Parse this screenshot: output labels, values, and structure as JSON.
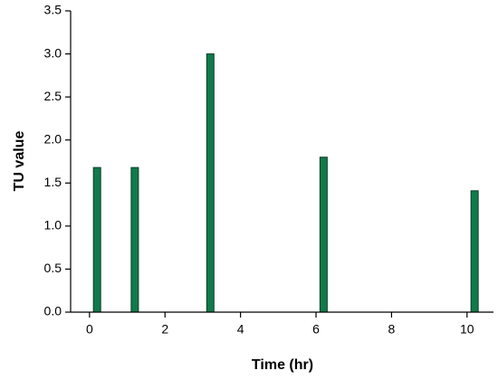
{
  "chart_data": {
    "type": "bar",
    "x_label": "Time (hr)",
    "y_label": "TU value",
    "x": [
      0.2,
      1.2,
      3.2,
      6.2,
      10.2
    ],
    "values": [
      1.68,
      1.68,
      3.0,
      1.8,
      1.41
    ],
    "color": "#107a4b",
    "xlim": [
      -0.5,
      10.7
    ],
    "xticks": [
      0,
      2,
      4,
      6,
      8,
      10
    ],
    "ylim": [
      0,
      3.5
    ],
    "yticks": [
      {
        "value": 0,
        "label": "0.0"
      },
      {
        "value": 0.5,
        "label": "0.5"
      },
      {
        "value": 1,
        "label": "1.0"
      },
      {
        "value": 1.5,
        "label": "1.5"
      },
      {
        "value": 2,
        "label": "2.0"
      },
      {
        "value": 2.5,
        "label": "2.5"
      },
      {
        "value": 3,
        "label": "3.0"
      },
      {
        "value": 3.5,
        "label": "3.5"
      }
    ],
    "grid": false
  }
}
